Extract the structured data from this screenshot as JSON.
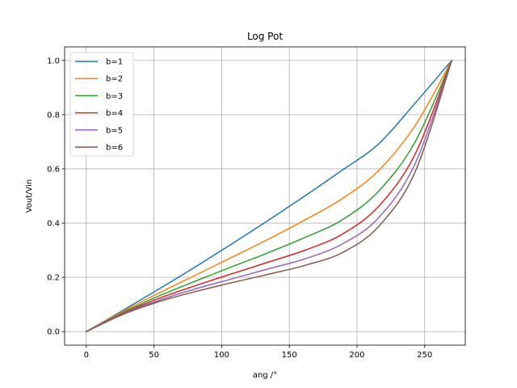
{
  "chart_data": {
    "type": "line",
    "title": "Log Pot",
    "xlabel": "ang /°",
    "ylabel": "Vout/Vin",
    "xlim": [
      -16,
      280
    ],
    "ylim": [
      -0.05,
      1.05
    ],
    "xticks": [
      0,
      50,
      100,
      150,
      200,
      250
    ],
    "yticks": [
      0.0,
      0.2,
      0.4,
      0.6,
      0.8,
      1.0
    ],
    "xtick_labels": [
      "0",
      "50",
      "100",
      "150",
      "200",
      "250"
    ],
    "ytick_labels": [
      "0.0",
      "0.2",
      "0.4",
      "0.6",
      "0.8",
      "1.0"
    ],
    "grid": true,
    "legend_position": "top-left",
    "x": [
      0,
      27,
      54,
      81,
      108,
      135,
      162,
      189,
      216,
      243,
      270
    ],
    "series": [
      {
        "name": "b=1",
        "color": "#1f77b4",
        "values": [
          0.0,
          0.078,
          0.158,
          0.24,
          0.325,
          0.412,
          0.502,
          0.595,
          0.692,
          0.843,
          1.0
        ]
      },
      {
        "name": "b=2",
        "color": "#ff7f0e",
        "values": [
          0.0,
          0.074,
          0.143,
          0.209,
          0.275,
          0.342,
          0.413,
          0.49,
          0.594,
          0.76,
          1.0
        ]
      },
      {
        "name": "b=3",
        "color": "#2ca02c",
        "values": [
          0.0,
          0.07,
          0.132,
          0.187,
          0.24,
          0.292,
          0.348,
          0.412,
          0.518,
          0.7,
          1.0
        ]
      },
      {
        "name": "b=4",
        "color": "#d62728",
        "values": [
          0.0,
          0.067,
          0.123,
          0.17,
          0.214,
          0.257,
          0.301,
          0.359,
          0.462,
          0.655,
          1.0
        ]
      },
      {
        "name": "b=5",
        "color": "#9467bd",
        "values": [
          0.0,
          0.065,
          0.116,
          0.158,
          0.195,
          0.232,
          0.269,
          0.323,
          0.42,
          0.62,
          1.0
        ]
      },
      {
        "name": "b=6",
        "color": "#8c564b",
        "values": [
          0.0,
          0.063,
          0.111,
          0.148,
          0.181,
          0.212,
          0.245,
          0.291,
          0.388,
          0.59,
          1.0
        ]
      }
    ]
  }
}
